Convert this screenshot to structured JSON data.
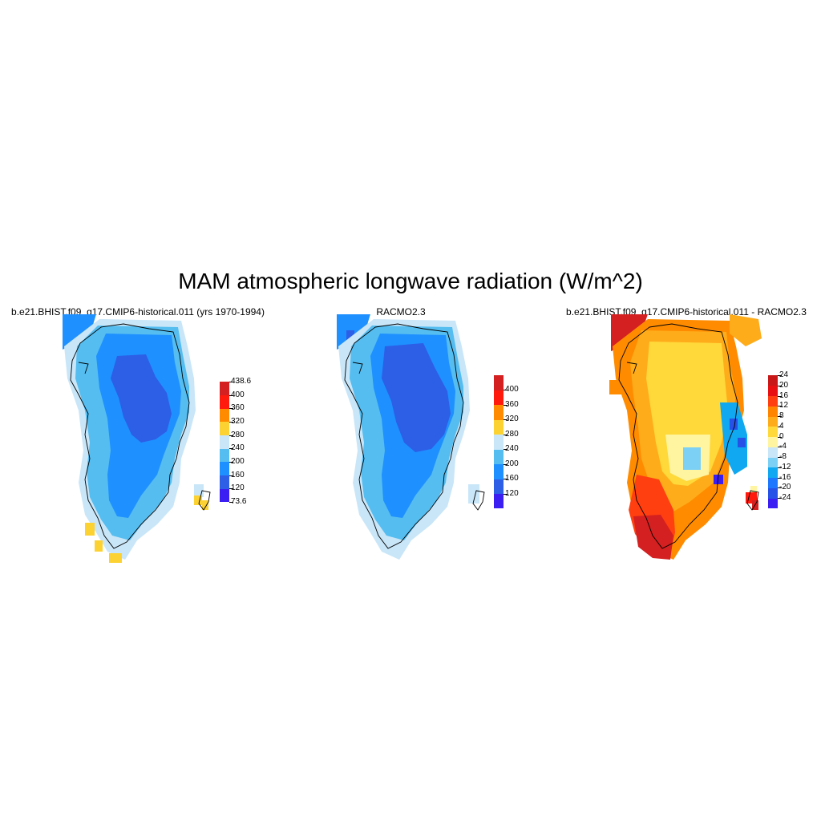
{
  "figure": {
    "title": "MAM atmospheric longwave radiation (W/m^2)"
  },
  "panels": [
    {
      "title": "b.e21.BHIST.f09_g17.CMIP6-historical.011 (yrs 1970-1994)",
      "colorbar": {
        "colors": [
          "#3a1ef2",
          "#2d5ee6",
          "#1e90ff",
          "#55bdf0",
          "#c9e6f8",
          "#fcd232",
          "#ff8c00",
          "#ff1a0d",
          "#d42020"
        ],
        "labels": [
          "73.6",
          "120",
          "160",
          "200",
          "240",
          "280",
          "320",
          "360",
          "400",
          "438.6"
        ]
      }
    },
    {
      "title": "RACMO2.3",
      "colorbar": {
        "colors": [
          "#3a1ef2",
          "#2d5ee6",
          "#1e90ff",
          "#55bdf0",
          "#c9e6f8",
          "#fcd232",
          "#ff8c00",
          "#ff1a0d",
          "#d42020"
        ],
        "labels": [
          "120",
          "160",
          "200",
          "240",
          "280",
          "320",
          "360",
          "400"
        ]
      }
    },
    {
      "title": "b.e21.BHIST.f09_g17.CMIP6-historical.011 - RACMO2.3",
      "colorbar": {
        "colors": [
          "#3a1ef2",
          "#2652e8",
          "#1e78ff",
          "#10a8f0",
          "#7dd0f5",
          "#c9e6f8",
          "#fff5a0",
          "#ffd83a",
          "#ffac1a",
          "#ff8400",
          "#ff3f10",
          "#e81010",
          "#c81818"
        ],
        "labels": [
          "-24",
          "-20",
          "-16",
          "-12",
          "-8",
          "-4",
          "0",
          "4",
          "8",
          "12",
          "16",
          "20",
          "24"
        ]
      }
    }
  ]
}
